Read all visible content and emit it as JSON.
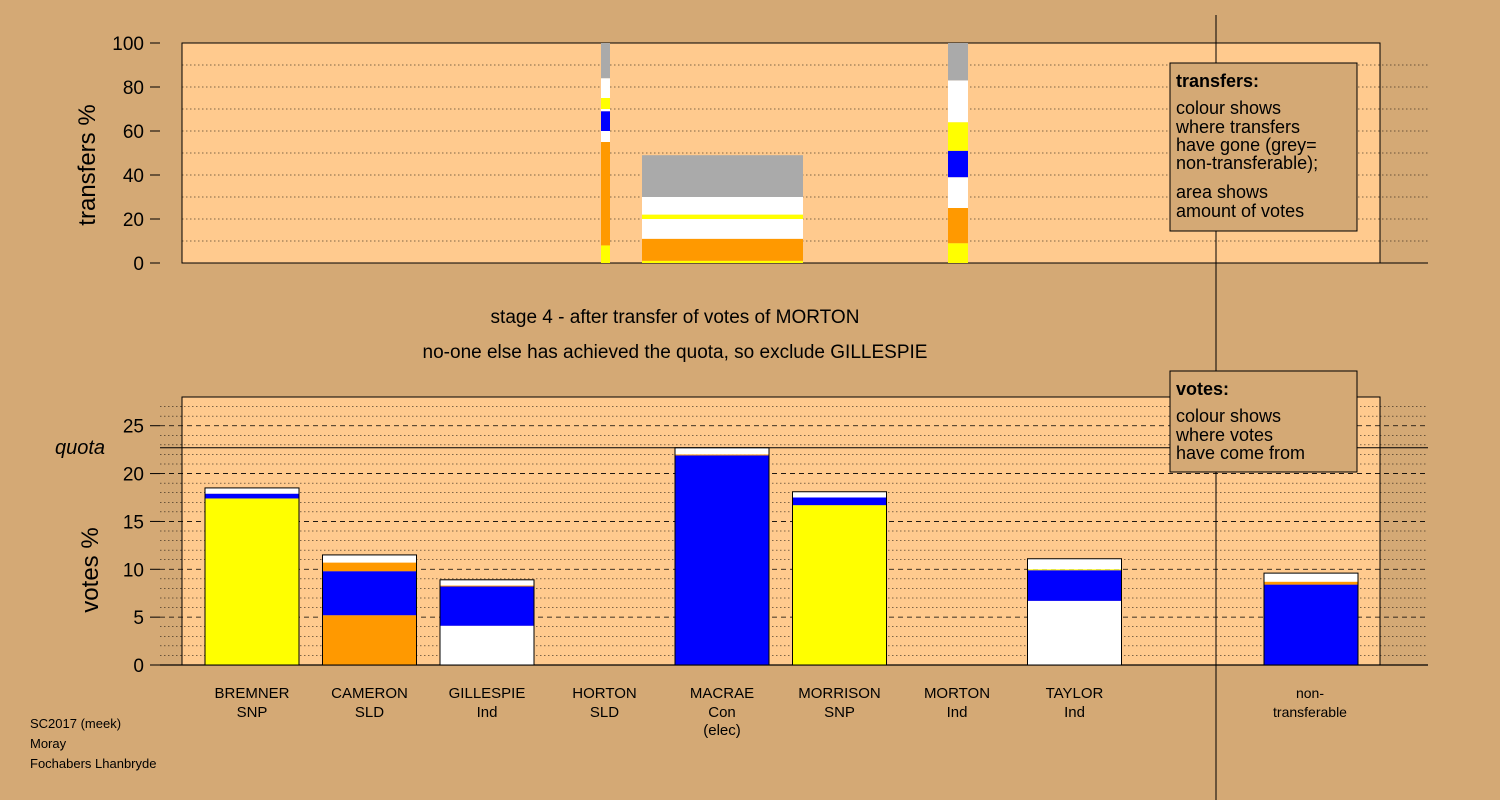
{
  "page": {
    "background": "#d4a975",
    "plot_background": "#ffca8e",
    "heading": "stage 4 - after transfer of votes of MORTON",
    "subheading": "no-one else has achieved the quota, so exclude GILLESPIE",
    "footer": [
      "SC2017 (meek)",
      "Moray",
      "Fochabers Lhanbryde"
    ]
  },
  "colors": {
    "SNP": "#ffff00",
    "SLD": "#ff9900",
    "Ind": "#ffffff",
    "Con": "#0000ff",
    "nontransferable": "#aaaaaa"
  },
  "legends": {
    "transfers": {
      "title": "transfers:",
      "lines1": [
        "colour shows",
        "where transfers",
        "have gone (grey=",
        "non-transferable);"
      ],
      "lines2": [
        "area shows",
        "amount of votes"
      ]
    },
    "votes": {
      "title": "votes:",
      "lines": [
        "colour shows",
        "where votes",
        "have come from"
      ]
    }
  },
  "chart_data": [
    {
      "type": "bar",
      "id": "transfers",
      "ylabel": "transfers %",
      "ylim": [
        0,
        100
      ],
      "yticks": [
        0,
        20,
        40,
        60,
        80,
        100
      ],
      "columns": [
        {
          "category": "MORTON",
          "segments": [
            {
              "color": "SNP",
              "from": 0,
              "to": 8
            },
            {
              "color": "SLD",
              "from": 8,
              "to": 55
            },
            {
              "color": "Ind",
              "from": 55,
              "to": 60
            },
            {
              "color": "Con",
              "from": 60,
              "to": 69
            },
            {
              "color": "Ind",
              "from": 69,
              "to": 70
            },
            {
              "color": "SNP",
              "from": 70,
              "to": 75
            },
            {
              "color": "Ind",
              "from": 75,
              "to": 84
            },
            {
              "color": "nontransferable",
              "from": 84,
              "to": 100
            }
          ]
        },
        {
          "category": "MACRAE_surplus",
          "segments": [
            {
              "color": "SNP",
              "from": 0,
              "to": 1
            },
            {
              "color": "SLD",
              "from": 1,
              "to": 11
            },
            {
              "color": "Ind",
              "from": 11,
              "to": 20
            },
            {
              "color": "SNP",
              "from": 20,
              "to": 22
            },
            {
              "color": "Ind",
              "from": 22,
              "to": 30
            },
            {
              "color": "nontransferable",
              "from": 30,
              "to": 49
            }
          ]
        },
        {
          "category": "TAYLOR",
          "segments": [
            {
              "color": "SNP",
              "from": 0,
              "to": 9
            },
            {
              "color": "SLD",
              "from": 9,
              "to": 25
            },
            {
              "color": "Ind",
              "from": 25,
              "to": 39
            },
            {
              "color": "Con",
              "from": 39,
              "to": 51
            },
            {
              "color": "SNP",
              "from": 51,
              "to": 64
            },
            {
              "color": "Ind",
              "from": 64,
              "to": 83
            },
            {
              "color": "nontransferable",
              "from": 83,
              "to": 100
            }
          ]
        }
      ]
    },
    {
      "type": "bar",
      "id": "votes",
      "ylabel": "votes %",
      "ylim": [
        0,
        28
      ],
      "yticks": [
        0,
        5,
        10,
        15,
        20,
        25
      ],
      "quota": 22.7,
      "quota_label": "quota",
      "categories": [
        {
          "name": "BREMNER",
          "party": "SNP",
          "segments": [
            {
              "color": "SNP",
              "value": 17.4
            },
            {
              "color": "Con",
              "value": 0.5
            },
            {
              "color": "Ind",
              "value": 0.6
            }
          ]
        },
        {
          "name": "CAMERON",
          "party": "SLD",
          "segments": [
            {
              "color": "SLD",
              "value": 5.2
            },
            {
              "color": "Con",
              "value": 4.6
            },
            {
              "color": "SLD",
              "value": 0.9
            },
            {
              "color": "Ind",
              "value": 0.8
            }
          ]
        },
        {
          "name": "GILLESPIE",
          "party": "Ind",
          "segments": [
            {
              "color": "Ind",
              "value": 4.1
            },
            {
              "color": "Con",
              "value": 4.1
            },
            {
              "color": "SLD",
              "value": 0.1
            },
            {
              "color": "Ind",
              "value": 0.6
            }
          ]
        },
        {
          "name": "HORTON",
          "party": "SLD",
          "segments": []
        },
        {
          "name": "MACRAE",
          "party": "Con",
          "extra": "(elec)",
          "segments": [
            {
              "color": "Con",
              "value": 21.9
            },
            {
              "color": "SLD",
              "value": 0.1
            },
            {
              "color": "Ind",
              "value": 0.7
            }
          ]
        },
        {
          "name": "MORRISON",
          "party": "SNP",
          "segments": [
            {
              "color": "SNP",
              "value": 16.7
            },
            {
              "color": "Con",
              "value": 0.8
            },
            {
              "color": "Ind",
              "value": 0.6
            }
          ]
        },
        {
          "name": "MORTON",
          "party": "Ind",
          "segments": []
        },
        {
          "name": "TAYLOR",
          "party": "Ind",
          "segments": [
            {
              "color": "Ind",
              "value": 6.7
            },
            {
              "color": "Con",
              "value": 3.2
            },
            {
              "color": "SNP",
              "value": 0.1
            },
            {
              "color": "Ind",
              "value": 1.1
            }
          ]
        }
      ],
      "nontransferable": {
        "label": [
          "non-",
          "transferable"
        ],
        "segments": [
          {
            "color": "Con",
            "value": 8.4
          },
          {
            "color": "SLD",
            "value": 0.3
          },
          {
            "color": "Ind",
            "value": 0.9
          }
        ]
      }
    }
  ]
}
